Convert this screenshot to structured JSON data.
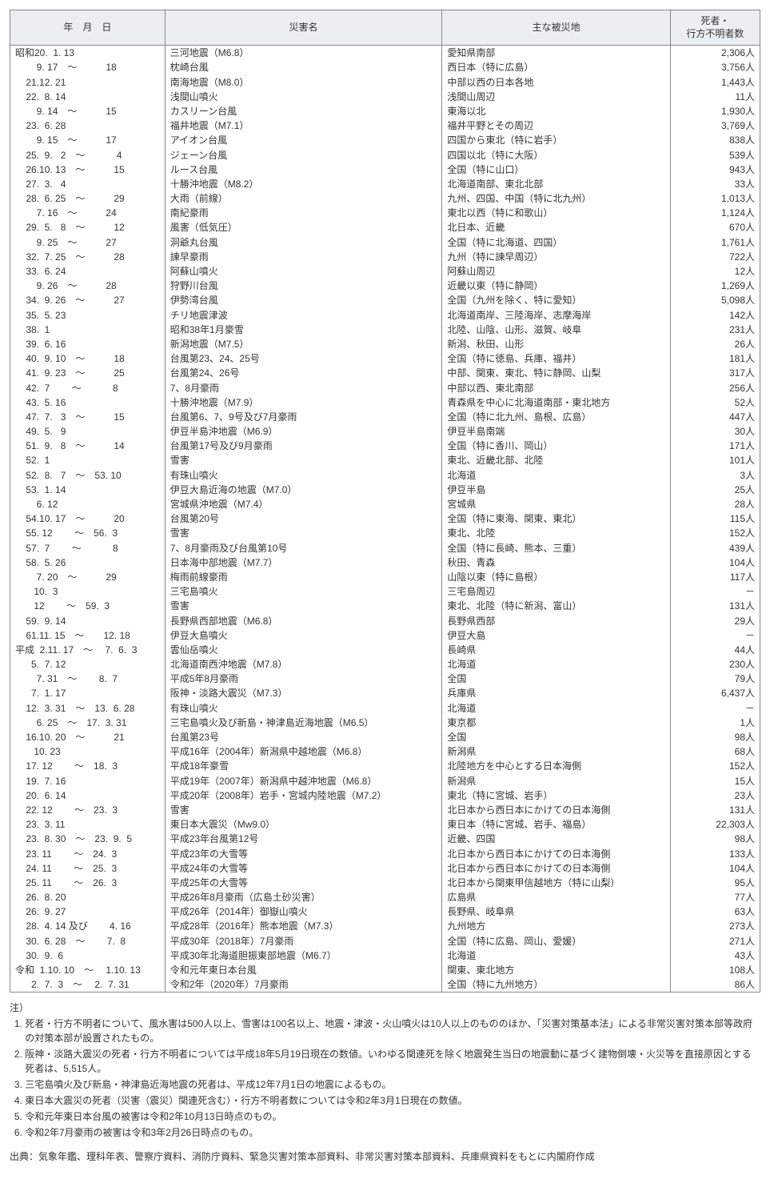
{
  "headers": {
    "date": "年　月　日",
    "name": "災害名",
    "area": "主な被災地",
    "deaths": "死者・\n行方不明者数"
  },
  "rows": [
    {
      "date": "昭和20.  1. 13",
      "name": "三河地震（M6.8）",
      "area": "愛知県南部",
      "deaths": "2,306人"
    },
    {
      "date": "        9. 17　～　　　18",
      "name": "枕崎台風",
      "area": "西日本（特に広島）",
      "deaths": "3,756人"
    },
    {
      "date": "    21.12. 21",
      "name": "南海地震（M8.0）",
      "area": "中部以西の日本各地",
      "deaths": "1,443人"
    },
    {
      "date": "    22.  8. 14",
      "name": "浅間山噴火",
      "area": "浅間山周辺",
      "deaths": "11人"
    },
    {
      "date": "        9. 14　～　　　15",
      "name": "カスリーン台風",
      "area": "東海以北",
      "deaths": "1,930人"
    },
    {
      "date": "    23.  6. 28",
      "name": "福井地震（M7.1）",
      "area": "福井平野とその周辺",
      "deaths": "3,769人"
    },
    {
      "date": "        9. 15　～　　　17",
      "name": "アイオン台風",
      "area": "四国から東北（特に岩手）",
      "deaths": "838人"
    },
    {
      "date": "    25.  9.   2　～　　　 4",
      "name": "ジェーン台風",
      "area": "四国以北（特に大阪）",
      "deaths": "539人"
    },
    {
      "date": "    26.10. 13　～　　　15",
      "name": "ルース台風",
      "area": "全国（特に山口）",
      "deaths": "943人"
    },
    {
      "date": "    27.  3.   4",
      "name": "十勝沖地震（M8.2）",
      "area": "北海道南部、東北北部",
      "deaths": "33人"
    },
    {
      "date": "    28.  6. 25　～　　　29",
      "name": "大雨（前線）",
      "area": "九州、四国、中国（特に北九州）",
      "deaths": "1,013人"
    },
    {
      "date": "        7. 16　～　　　24",
      "name": "南紀豪雨",
      "area": "東北以西（特に和歌山）",
      "deaths": "1,124人"
    },
    {
      "date": "    29.  5.   8　～　　　12",
      "name": "風害（低気圧）",
      "area": "北日本、近畿",
      "deaths": "670人"
    },
    {
      "date": "        9. 25　～　　　27",
      "name": "洞爺丸台風",
      "area": "全国（特に北海道、四国）",
      "deaths": "1,761人"
    },
    {
      "date": "    32.  7. 25　～　　　28",
      "name": "諫早豪雨",
      "area": "九州（特に諫早周辺）",
      "deaths": "722人"
    },
    {
      "date": "    33.  6. 24",
      "name": "阿蘇山噴火",
      "area": "阿蘇山周辺",
      "deaths": "12人"
    },
    {
      "date": "        9. 26　～　　　28",
      "name": "狩野川台風",
      "area": "近畿以東（特に静岡）",
      "deaths": "1,269人"
    },
    {
      "date": "    34.  9. 26　～　　　27",
      "name": "伊勢湾台風",
      "area": "全国（九州を除く、特に愛知）",
      "deaths": "5,098人"
    },
    {
      "date": "    35.  5. 23",
      "name": "チリ地震津波",
      "area": "北海道南岸、三陸海岸、志摩海岸",
      "deaths": "142人"
    },
    {
      "date": "    38.  1",
      "name": "昭和38年1月豪雪",
      "area": "北陸、山陰、山形、滋賀、岐阜",
      "deaths": "231人"
    },
    {
      "date": "    39.  6. 16",
      "name": "新潟地震（M7.5）",
      "area": "新潟、秋田、山形",
      "deaths": "26人"
    },
    {
      "date": "    40.  9. 10　～　　　18",
      "name": "台風第23、24、25号",
      "area": "全国（特に徳島、兵庫、福井）",
      "deaths": "181人"
    },
    {
      "date": "    41.  9. 23　～　　　25",
      "name": "台風第24、26号",
      "area": "中部、関東、東北、特に静岡、山梨",
      "deaths": "317人"
    },
    {
      "date": "    42.  7　　 ～　　　 8",
      "name": "7、8月豪雨",
      "area": "中部以西、東北南部",
      "deaths": "256人"
    },
    {
      "date": "    43.  5. 16",
      "name": "十勝沖地震（M7.9）",
      "area": "青森県を中心に北海道南部・東北地方",
      "deaths": "52人"
    },
    {
      "date": "    47.  7.   3　～　　　15",
      "name": "台風第6、7、9号及び7月豪雨",
      "area": "全国（特に北九州、島根、広島）",
      "deaths": "447人"
    },
    {
      "date": "    49.  5.   9",
      "name": "伊豆半島沖地震（M6.9）",
      "area": "伊豆半島南端",
      "deaths": "30人"
    },
    {
      "date": "    51.  9.   8　～　　　14",
      "name": "台風第17号及び9月豪雨",
      "area": "全国（特に香川、岡山）",
      "deaths": "171人"
    },
    {
      "date": "    52.  1",
      "name": "雪害",
      "area": "東北、近畿北部、北陸",
      "deaths": "101人"
    },
    {
      "date": "    52.  8.   7　～　53. 10",
      "name": "有珠山噴火",
      "area": "北海道",
      "deaths": "3人"
    },
    {
      "date": "    53.  1. 14",
      "name": "伊豆大島近海の地震（M7.0）",
      "area": "伊豆半島",
      "deaths": "25人"
    },
    {
      "date": "        6. 12",
      "name": "宮城県沖地震（M7.4）",
      "area": "宮城県",
      "deaths": "28人"
    },
    {
      "date": "    54.10. 17　～　　　20",
      "name": "台風第20号",
      "area": "全国（特に東海、関東、東北）",
      "deaths": "115人"
    },
    {
      "date": "    55. 12　　 ～　56.  3",
      "name": "雪害",
      "area": "東北、北陸",
      "deaths": "152人"
    },
    {
      "date": "    57.  7　　 ～　　　 8",
      "name": "7、8月豪雨及び台風第10号",
      "area": "全国（特に長崎、熊本、三重）",
      "deaths": "439人"
    },
    {
      "date": "    58.  5. 26",
      "name": "日本海中部地震（M7.7）",
      "area": "秋田、青森",
      "deaths": "104人"
    },
    {
      "date": "        7. 20　～　　　29",
      "name": "梅雨前線豪雨",
      "area": "山陰以東（特に島根）",
      "deaths": "117人"
    },
    {
      "date": "       10.  3",
      "name": "三宅島噴火",
      "area": "三宅島周辺",
      "deaths": "－"
    },
    {
      "date": "       12　　 ～　59.  3",
      "name": "雪害",
      "area": "東北、北陸（特に新潟、富山）",
      "deaths": "131人"
    },
    {
      "date": "    59.  9. 14",
      "name": "長野県西部地震（M6.8）",
      "area": "長野県西部",
      "deaths": "29人"
    },
    {
      "date": "    61.11. 15　～　　12. 18",
      "name": "伊豆大島噴火",
      "area": "伊豆大島",
      "deaths": "－"
    },
    {
      "date": "平成  2.11. 17　～　 7.  6.  3",
      "name": "雲仙岳噴火",
      "area": "長崎県",
      "deaths": "44人"
    },
    {
      "date": "      5.  7. 12",
      "name": "北海道南西沖地震（M7.8）",
      "area": "北海道",
      "deaths": "230人"
    },
    {
      "date": "        7. 31　～　　 8.  7",
      "name": "平成5年8月豪雨",
      "area": "全国",
      "deaths": "79人"
    },
    {
      "date": "      7.  1. 17",
      "name": "阪神・淡路大震災（M7.3）",
      "area": "兵庫県",
      "deaths": "6,437人"
    },
    {
      "date": "    12.  3. 31　～　13.  6. 28",
      "name": "有珠山噴火",
      "area": "北海道",
      "deaths": "－"
    },
    {
      "date": "        6. 25　～　17.  3. 31",
      "name": "三宅島噴火及び新島・神津島近海地震（M6.5）",
      "area": "東京都",
      "deaths": "1人"
    },
    {
      "date": "    16.10. 20　～　　　21",
      "name": "台風第23号",
      "area": "全国",
      "deaths": "98人"
    },
    {
      "date": "       10. 23",
      "name": "平成16年（2004年）新潟県中越地震（M6.8）",
      "area": "新潟県",
      "deaths": "68人"
    },
    {
      "date": "    17. 12　　 ～　18.  3",
      "name": "平成18年豪雪",
      "area": "北陸地方を中心とする日本海側",
      "deaths": "152人"
    },
    {
      "date": "    19.  7. 16",
      "name": "平成19年（2007年）新潟県中越沖地震（M6.8）",
      "area": "新潟県",
      "deaths": "15人"
    },
    {
      "date": "    20.  6. 14",
      "name": "平成20年（2008年）岩手・宮城内陸地震（M7.2）",
      "area": "東北（特に宮城、岩手）",
      "deaths": "23人"
    },
    {
      "date": "    22. 12　　 ～　23.  3",
      "name": "雪害",
      "area": "北日本から西日本にかけての日本海側",
      "deaths": "131人"
    },
    {
      "date": "    23.  3. 11",
      "name": "東日本大震災（Mw9.0）",
      "area": "東日本（特に宮城、岩手、福島）",
      "deaths": "22,303人"
    },
    {
      "date": "    23.  8. 30　～　23.  9.  5",
      "name": "平成23年台風第12号",
      "area": "近畿、四国",
      "deaths": "98人"
    },
    {
      "date": "    23. 11　　 ～　24.  3",
      "name": "平成23年の大雪等",
      "area": "北日本から西日本にかけての日本海側",
      "deaths": "133人"
    },
    {
      "date": "    24. 11　　 ～　25.  3",
      "name": "平成24年の大雪等",
      "area": "北日本から西日本にかけての日本海側",
      "deaths": "104人"
    },
    {
      "date": "    25. 11　　 ～　26.  3",
      "name": "平成25年の大雪等",
      "area": "北日本から関東甲信越地方（特に山梨）",
      "deaths": "95人"
    },
    {
      "date": "    26.  8. 20",
      "name": "平成26年8月豪雨（広島土砂災害）",
      "area": "広島県",
      "deaths": "77人"
    },
    {
      "date": "    26.  9. 27",
      "name": "平成26年（2014年）御嶽山噴火",
      "area": "長野県、岐阜県",
      "deaths": "63人"
    },
    {
      "date": "    28.  4. 14 及び　　 4. 16",
      "name": "平成28年（2016年）熊本地震（M7.3）",
      "area": "九州地方",
      "deaths": "273人"
    },
    {
      "date": "    30.  6. 28　～　　 7.  8",
      "name": "平成30年（2018年）7月豪雨",
      "area": "全国（特に広島、岡山、愛媛）",
      "deaths": "271人"
    },
    {
      "date": "    30.  9.  6",
      "name": "平成30年北海道胆振東部地震（M6.7）",
      "area": "北海道",
      "deaths": "43人"
    },
    {
      "date": "令和  1.10. 10　～　 1.10. 13",
      "name": "令和元年東日本台風",
      "area": "関東、東北地方",
      "deaths": "108人"
    },
    {
      "date": "      2.  7.  3　～　 2.  7. 31",
      "name": "令和2年（2020年）7月豪雨",
      "area": "全国（特に九州地方）",
      "deaths": "86人"
    }
  ],
  "notes": {
    "head": "注）",
    "items": [
      "死者・行方不明者について、風水害は500人以上、雪害は100名以上、地震・津波・火山噴火は10人以上のもののほか、「災害対策基本法」による非常災害対策本部等政府の対策本部が設置されたもの。",
      "阪神・淡路大震災の死者・行方不明者については平成18年5月19日現在の数値。いわゆる関連死を除く地震発生当日の地震動に基づく建物倒壊・火災等を直接原因とする死者は、5,515人。",
      "三宅島噴火及び新島・神津島近海地震の死者は、平成12年7月1日の地震によるもの。",
      "東日本大震災の死者（災害（震災）関連死含む）・行方不明者数については令和2年3月1日現在の数値。",
      "令和元年東日本台風の被害は令和2年10月13日時点のもの。",
      "令和2年7月豪雨の被害は令和3年2月26日時点のもの。"
    ],
    "source": "出典：気象年鑑、理科年表、警察庁資料、消防庁資料、緊急災害対策本部資料、非常災害対策本部資料、兵庫県資料をもとに内閣府作成"
  }
}
